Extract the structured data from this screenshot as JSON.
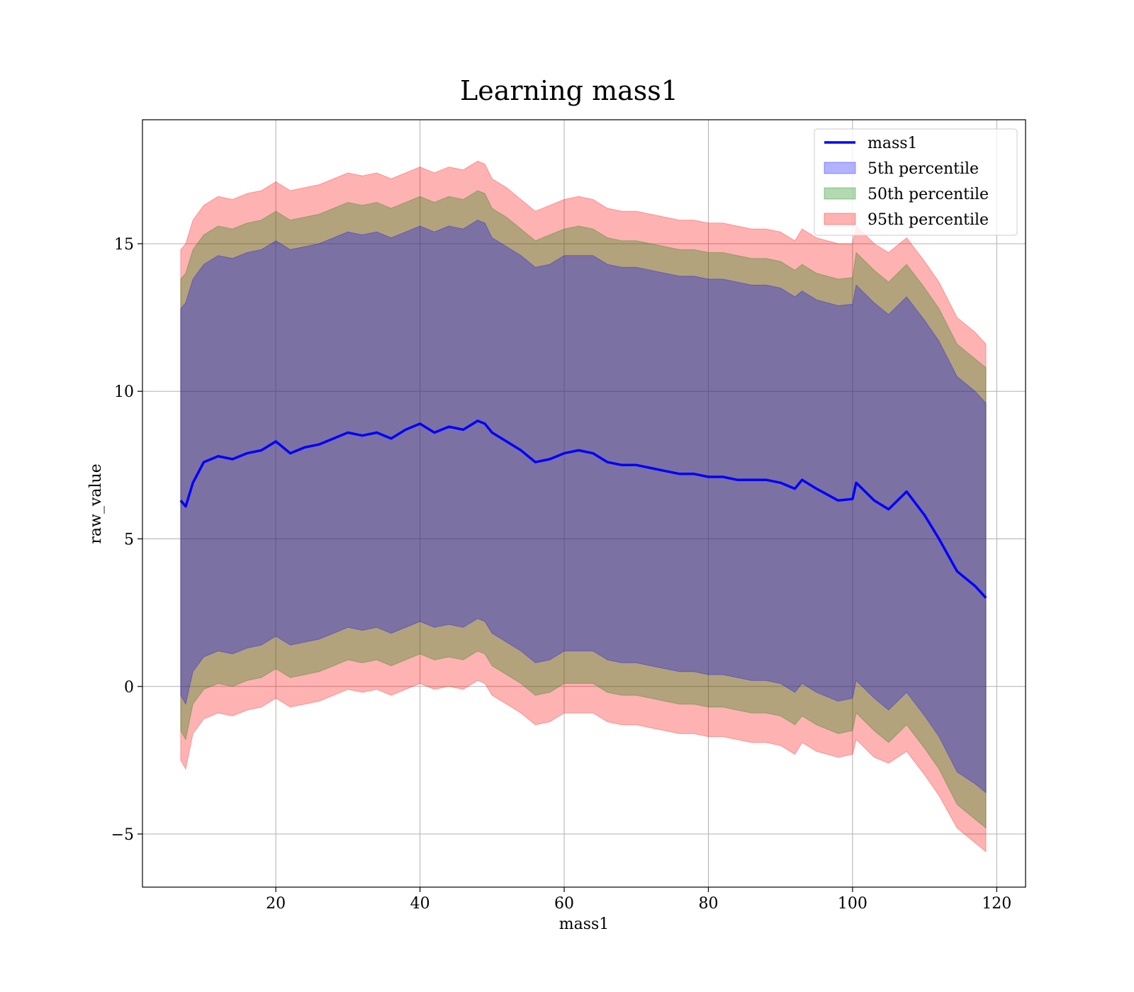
{
  "chart_data": {
    "type": "area",
    "title": "Learning mass1",
    "xlabel": "mass1",
    "ylabel": "raw_value",
    "xlim": [
      1.5,
      124.0
    ],
    "ylim": [
      -6.8,
      19.2
    ],
    "xticks": [
      20,
      40,
      60,
      80,
      100,
      120
    ],
    "yticks": [
      -5,
      0,
      5,
      10,
      15
    ],
    "ytick_labels": [
      "−5",
      "0",
      "5",
      "10",
      "15"
    ],
    "grid": true,
    "legend_position": "top-right",
    "colors": {
      "line": "#0000ff",
      "p5": "#0000ff",
      "p50": "#008000",
      "p95": "#ff0000",
      "grid": "#b0b0b0",
      "axes": "#000000"
    },
    "x": [
      6.8,
      7.5,
      8.5,
      10,
      12,
      14,
      16,
      18,
      20,
      22,
      24,
      26,
      28,
      30,
      32,
      34,
      36,
      38,
      40,
      42,
      44,
      46,
      48,
      49,
      50,
      52,
      54,
      56,
      58,
      60,
      62,
      64,
      66,
      68,
      70,
      72,
      74,
      76,
      78,
      80,
      82,
      84,
      86,
      88,
      90,
      92,
      93,
      95,
      98,
      100,
      100.5,
      103,
      105,
      107.5,
      110,
      112,
      114.5,
      117,
      118.5
    ],
    "series": [
      {
        "name": "mass1",
        "kind": "line",
        "values": [
          6.3,
          6.1,
          6.9,
          7.6,
          7.8,
          7.7,
          7.9,
          8.0,
          8.3,
          7.9,
          8.1,
          8.2,
          8.4,
          8.6,
          8.5,
          8.6,
          8.4,
          8.7,
          8.9,
          8.6,
          8.8,
          8.7,
          9.0,
          8.9,
          8.6,
          8.3,
          8.0,
          7.6,
          7.7,
          7.9,
          8.0,
          7.9,
          7.6,
          7.5,
          7.5,
          7.4,
          7.3,
          7.2,
          7.2,
          7.1,
          7.1,
          7.0,
          7.0,
          7.0,
          6.9,
          6.7,
          7.0,
          6.7,
          6.3,
          6.35,
          6.9,
          6.3,
          6.0,
          6.6,
          5.8,
          5.0,
          3.9,
          3.4,
          3.0
        ]
      },
      {
        "name": "5th percentile",
        "kind": "band",
        "upper": [
          12.8,
          13.0,
          13.8,
          14.3,
          14.6,
          14.5,
          14.7,
          14.8,
          15.1,
          14.8,
          14.9,
          15.0,
          15.2,
          15.4,
          15.3,
          15.4,
          15.2,
          15.4,
          15.6,
          15.4,
          15.6,
          15.5,
          15.8,
          15.7,
          15.2,
          14.9,
          14.6,
          14.2,
          14.3,
          14.6,
          14.6,
          14.6,
          14.3,
          14.2,
          14.2,
          14.1,
          14.0,
          13.9,
          13.9,
          13.8,
          13.8,
          13.7,
          13.6,
          13.6,
          13.5,
          13.2,
          13.4,
          13.1,
          12.9,
          12.95,
          13.6,
          13.0,
          12.6,
          13.2,
          12.4,
          11.7,
          10.5,
          10.0,
          9.6
        ],
        "lower": [
          -0.3,
          -0.6,
          0.5,
          1.0,
          1.2,
          1.1,
          1.3,
          1.4,
          1.7,
          1.4,
          1.5,
          1.6,
          1.8,
          2.0,
          1.9,
          2.0,
          1.8,
          2.0,
          2.2,
          2.0,
          2.1,
          2.0,
          2.3,
          2.2,
          1.8,
          1.5,
          1.2,
          0.8,
          0.9,
          1.2,
          1.2,
          1.2,
          0.9,
          0.8,
          0.8,
          0.7,
          0.6,
          0.5,
          0.5,
          0.4,
          0.4,
          0.3,
          0.2,
          0.2,
          0.1,
          -0.2,
          0.1,
          -0.2,
          -0.5,
          -0.4,
          0.2,
          -0.4,
          -0.8,
          -0.2,
          -1.0,
          -1.7,
          -2.9,
          -3.3,
          -3.6
        ]
      },
      {
        "name": "50th percentile",
        "kind": "band",
        "upper": [
          13.8,
          14.0,
          14.8,
          15.3,
          15.6,
          15.5,
          15.7,
          15.8,
          16.1,
          15.8,
          15.9,
          16.0,
          16.2,
          16.4,
          16.3,
          16.4,
          16.2,
          16.4,
          16.6,
          16.4,
          16.6,
          16.5,
          16.8,
          16.7,
          16.2,
          15.9,
          15.5,
          15.1,
          15.3,
          15.5,
          15.6,
          15.5,
          15.2,
          15.1,
          15.1,
          15.0,
          14.9,
          14.8,
          14.8,
          14.7,
          14.7,
          14.6,
          14.5,
          14.5,
          14.4,
          14.1,
          14.3,
          14.0,
          13.8,
          13.85,
          14.7,
          14.1,
          13.7,
          14.3,
          13.5,
          12.8,
          11.6,
          11.1,
          10.8
        ],
        "lower": [
          -1.5,
          -1.8,
          -0.6,
          -0.1,
          0.1,
          0.0,
          0.2,
          0.3,
          0.6,
          0.3,
          0.4,
          0.5,
          0.7,
          0.9,
          0.8,
          0.9,
          0.7,
          0.9,
          1.1,
          0.9,
          1.0,
          0.9,
          1.2,
          1.1,
          0.7,
          0.4,
          0.1,
          -0.3,
          -0.2,
          0.1,
          0.1,
          0.1,
          -0.2,
          -0.3,
          -0.3,
          -0.4,
          -0.5,
          -0.6,
          -0.6,
          -0.7,
          -0.7,
          -0.8,
          -0.9,
          -0.9,
          -1.0,
          -1.3,
          -1.0,
          -1.3,
          -1.6,
          -1.5,
          -0.9,
          -1.5,
          -1.9,
          -1.3,
          -2.1,
          -2.8,
          -4.0,
          -4.5,
          -4.8
        ]
      },
      {
        "name": "95th percentile",
        "kind": "band",
        "upper": [
          14.8,
          15.0,
          15.8,
          16.3,
          16.6,
          16.5,
          16.7,
          16.8,
          17.1,
          16.8,
          16.9,
          17.0,
          17.2,
          17.4,
          17.3,
          17.4,
          17.2,
          17.4,
          17.6,
          17.4,
          17.6,
          17.5,
          17.8,
          17.7,
          17.2,
          16.9,
          16.5,
          16.1,
          16.3,
          16.5,
          16.6,
          16.5,
          16.2,
          16.1,
          16.1,
          16.0,
          15.9,
          15.8,
          15.8,
          15.7,
          15.7,
          15.6,
          15.5,
          15.5,
          15.4,
          15.1,
          15.5,
          15.2,
          15.0,
          15.0,
          15.6,
          15.0,
          14.7,
          15.2,
          14.4,
          13.7,
          12.5,
          12.0,
          11.6
        ],
        "lower": [
          -2.5,
          -2.8,
          -1.6,
          -1.1,
          -0.9,
          -1.0,
          -0.8,
          -0.7,
          -0.4,
          -0.7,
          -0.6,
          -0.5,
          -0.3,
          -0.1,
          -0.2,
          -0.1,
          -0.3,
          -0.1,
          0.1,
          -0.1,
          0.0,
          -0.1,
          0.2,
          0.1,
          -0.3,
          -0.6,
          -0.9,
          -1.3,
          -1.2,
          -0.9,
          -0.9,
          -0.9,
          -1.2,
          -1.3,
          -1.3,
          -1.4,
          -1.5,
          -1.6,
          -1.6,
          -1.7,
          -1.7,
          -1.8,
          -1.9,
          -1.9,
          -2.0,
          -2.3,
          -1.9,
          -2.2,
          -2.4,
          -2.3,
          -1.8,
          -2.4,
          -2.6,
          -2.2,
          -3.0,
          -3.7,
          -4.8,
          -5.3,
          -5.6
        ]
      }
    ],
    "legend": [
      {
        "label": "mass1",
        "type": "line",
        "color": "#0000ff"
      },
      {
        "label": "5th percentile",
        "type": "patch",
        "color": "#0000ff"
      },
      {
        "label": "50th percentile",
        "type": "patch",
        "color": "#008000"
      },
      {
        "label": "95th percentile",
        "type": "patch",
        "color": "#ff0000"
      }
    ]
  }
}
